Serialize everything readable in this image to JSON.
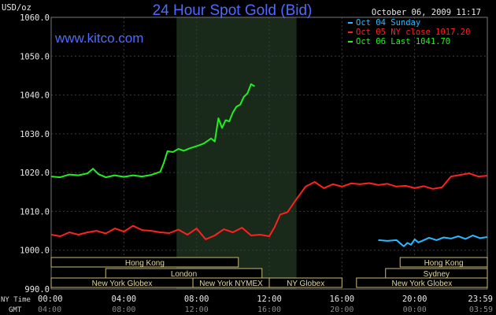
{
  "chart_data": {
    "type": "line",
    "title": "24 Hour Spot Gold (Bid)",
    "brand": "www.kitco.com",
    "timestamp": "October 06, 2009 11:17",
    "ylabel": "USD/oz",
    "ylim": [
      990,
      1060
    ],
    "yticks": [
      "1060.0",
      "1050.0",
      "1040.0",
      "1030.0",
      "1020.0",
      "1010.0",
      "1000.0",
      "990.0"
    ],
    "xlim": [
      0,
      24
    ],
    "xlabel_ny": "NY Time",
    "xlabel_gmt": "GMT",
    "xticks_ny": [
      "00:00",
      "04:00",
      "08:00",
      "12:00",
      "16:00",
      "20:00",
      "23:59"
    ],
    "xticks_gmt": [
      "04:00",
      "08:00",
      "12:00",
      "16:00",
      "20:00",
      "00:00",
      "03:59"
    ],
    "shaded_hours": [
      6.9,
      13.5
    ],
    "legend_position": "top-right",
    "series": [
      {
        "name": "Oct 04 Sunday",
        "color": "#2ab8ff",
        "x": [
          18.0,
          18.5,
          19.0,
          19.2,
          19.4,
          19.6,
          19.8,
          20.0,
          20.2,
          20.5,
          20.8,
          21.2,
          21.6,
          22.0,
          22.4,
          22.8,
          23.2,
          23.6,
          23.99
        ],
        "y": [
          1002.6,
          1002.4,
          1002.6,
          1001.8,
          1001.0,
          1001.9,
          1001.4,
          1002.8,
          1002.0,
          1002.6,
          1003.2,
          1002.6,
          1003.3,
          1003.0,
          1003.6,
          1002.9,
          1003.8,
          1003.1,
          1003.4
        ]
      },
      {
        "name": "Oct 05 NY close 1017.20",
        "color": "#ff2020",
        "x": [
          0.0,
          0.5,
          1.0,
          1.5,
          2.0,
          2.5,
          3.0,
          3.5,
          4.0,
          4.5,
          5.0,
          5.5,
          6.0,
          6.5,
          7.0,
          7.5,
          8.0,
          8.5,
          9.0,
          9.5,
          10.0,
          10.5,
          11.0,
          11.5,
          12.0,
          12.3,
          12.6,
          13.0,
          13.5,
          14.0,
          14.5,
          15.0,
          15.5,
          16.0,
          16.5,
          17.0,
          17.5,
          18.0,
          18.5,
          19.0,
          19.5,
          20.0,
          20.5,
          21.0,
          21.5,
          22.0,
          22.5,
          23.0,
          23.5,
          23.99
        ],
        "y": [
          1004.0,
          1003.6,
          1004.6,
          1004.0,
          1004.6,
          1005.0,
          1004.3,
          1005.6,
          1004.8,
          1006.3,
          1005.2,
          1005.0,
          1004.6,
          1004.4,
          1005.3,
          1004.0,
          1005.6,
          1002.8,
          1003.8,
          1005.4,
          1004.6,
          1005.8,
          1003.8,
          1004.0,
          1003.6,
          1006.0,
          1009.2,
          1009.8,
          1013.2,
          1016.4,
          1017.6,
          1016.0,
          1017.0,
          1016.4,
          1017.2,
          1017.0,
          1017.3,
          1016.8,
          1017.1,
          1016.4,
          1016.6,
          1016.0,
          1016.5,
          1015.8,
          1016.2,
          1019.0,
          1019.4,
          1019.8,
          1019.0,
          1019.2
        ]
      },
      {
        "name": "Oct 06 Last 1041.70",
        "color": "#22ee22",
        "x": [
          0.0,
          0.5,
          1.0,
          1.5,
          2.0,
          2.3,
          2.6,
          3.0,
          3.5,
          4.0,
          4.5,
          5.0,
          5.5,
          6.0,
          6.2,
          6.4,
          6.7,
          7.0,
          7.3,
          7.6,
          8.0,
          8.4,
          8.8,
          9.0,
          9.2,
          9.4,
          9.6,
          9.8,
          10.0,
          10.2,
          10.4,
          10.6,
          10.8,
          11.0,
          11.2
        ],
        "y": [
          1019.0,
          1018.8,
          1019.5,
          1019.3,
          1019.8,
          1021.0,
          1019.6,
          1018.8,
          1019.3,
          1018.9,
          1019.3,
          1019.0,
          1019.4,
          1020.2,
          1022.5,
          1025.5,
          1025.3,
          1026.1,
          1025.6,
          1026.2,
          1026.8,
          1027.5,
          1028.8,
          1028.0,
          1034.0,
          1031.5,
          1033.5,
          1033.2,
          1035.5,
          1037.0,
          1037.5,
          1039.5,
          1040.4,
          1042.8,
          1042.2
        ]
      }
    ],
    "market_rows": [
      [
        {
          "label": "Hong Kong",
          "start": 0.0,
          "end": 10.3
        },
        {
          "label": "Hong Kong",
          "start": 19.2,
          "end": 24.0
        }
      ],
      [
        {
          "label": "London",
          "start": 3.0,
          "end": 11.6
        },
        {
          "label": "Sydney",
          "start": 18.4,
          "end": 24.0
        }
      ],
      [
        {
          "label": "New York Globex",
          "start": 0.0,
          "end": 7.8
        },
        {
          "label": "New York NYMEX",
          "start": 7.8,
          "end": 12.0
        },
        {
          "label": "NY Globex",
          "start": 12.0,
          "end": 16.0
        },
        {
          "label": "New York Globex",
          "start": 16.8,
          "end": 24.0
        }
      ]
    ]
  }
}
